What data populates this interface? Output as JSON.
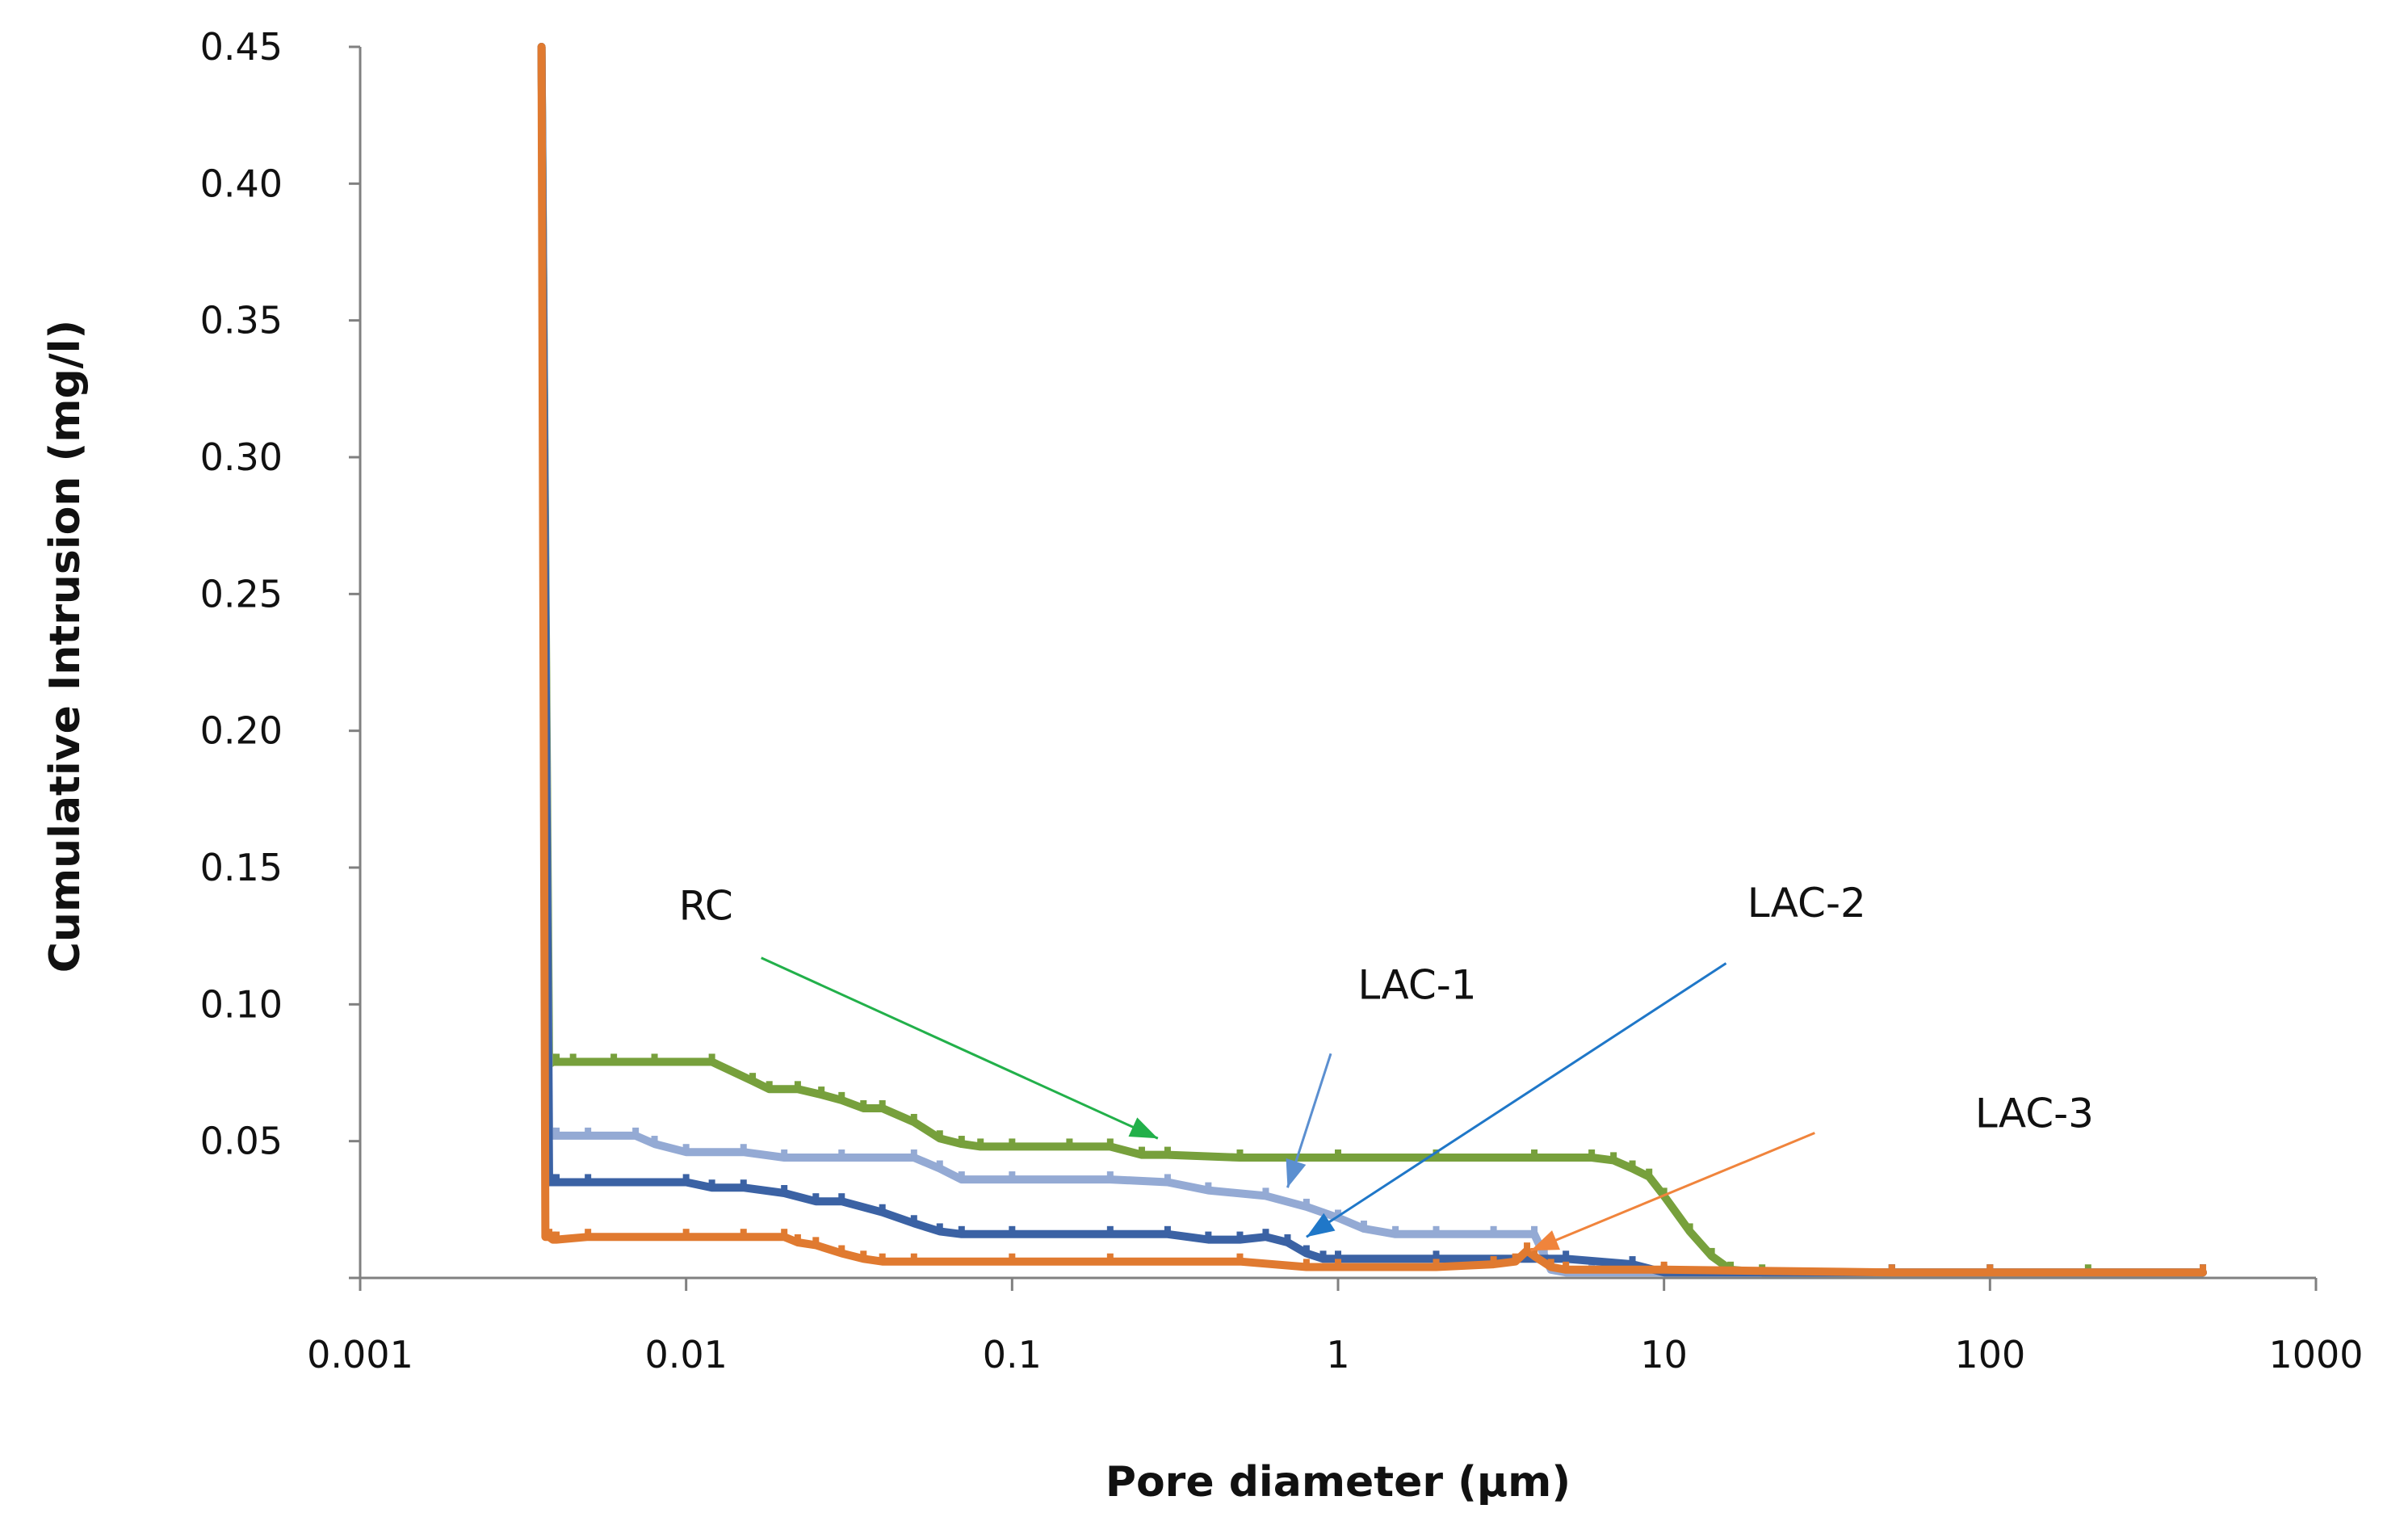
{
  "chart_data": {
    "type": "line",
    "title": "",
    "xlabel": "Pore diameter (µm)",
    "ylabel": "Cumulative Intrusion (mg/l)",
    "x_scale": "log",
    "xlim": [
      0.001,
      1000
    ],
    "ylim": [
      0,
      0.45
    ],
    "x_ticks": [
      0.001,
      0.01,
      0.1,
      1,
      10,
      100,
      1000
    ],
    "x_tick_labels": [
      "0.001",
      "0.01",
      "0.1",
      "1",
      "10",
      "100",
      "1000"
    ],
    "y_ticks": [
      0.05,
      0.1,
      0.15,
      0.2,
      0.25,
      0.3,
      0.35,
      0.4,
      0.45
    ],
    "y_tick_labels": [
      "0.05",
      "0.10",
      "0.15",
      "0.20",
      "0.25",
      "0.30",
      "0.35",
      "0.40",
      "0.45"
    ],
    "grid": false,
    "legend": "none",
    "series": [
      {
        "name": "RC",
        "color": "#77a03c",
        "x": [
          0.0036,
          0.0038,
          0.0039,
          0.004,
          0.0045,
          0.006,
          0.008,
          0.012,
          0.016,
          0.018,
          0.022,
          0.026,
          0.03,
          0.035,
          0.04,
          0.05,
          0.06,
          0.07,
          0.08,
          0.1,
          0.15,
          0.2,
          0.25,
          0.3,
          0.5,
          1,
          2,
          4,
          6,
          7,
          8,
          9,
          10,
          12,
          14,
          16,
          20,
          50,
          100,
          200,
          450
        ],
        "y": [
          0.45,
          0.078,
          0.079,
          0.079,
          0.079,
          0.079,
          0.079,
          0.079,
          0.072,
          0.069,
          0.069,
          0.067,
          0.065,
          0.062,
          0.062,
          0.057,
          0.051,
          0.049,
          0.048,
          0.048,
          0.048,
          0.048,
          0.045,
          0.045,
          0.044,
          0.044,
          0.044,
          0.044,
          0.044,
          0.043,
          0.04,
          0.037,
          0.03,
          0.017,
          0.008,
          0.003,
          0.002,
          0.002,
          0.002,
          0.002,
          0.002
        ]
      },
      {
        "name": "LAC-1",
        "color": "#94aad4",
        "x": [
          0.0036,
          0.0038,
          0.0039,
          0.004,
          0.005,
          0.007,
          0.008,
          0.01,
          0.015,
          0.02,
          0.03,
          0.05,
          0.06,
          0.07,
          0.1,
          0.2,
          0.3,
          0.4,
          0.6,
          0.8,
          1,
          1.2,
          1.5,
          2,
          3,
          4,
          4.3,
          4.5,
          5,
          6,
          10,
          50,
          100,
          450
        ],
        "y": [
          0.45,
          0.052,
          0.052,
          0.052,
          0.052,
          0.052,
          0.049,
          0.046,
          0.046,
          0.044,
          0.044,
          0.044,
          0.04,
          0.036,
          0.036,
          0.036,
          0.035,
          0.032,
          0.03,
          0.026,
          0.022,
          0.018,
          0.016,
          0.016,
          0.016,
          0.016,
          0.008,
          0.003,
          0.002,
          0.002,
          0.002,
          0.002,
          0.002,
          0.002
        ]
      },
      {
        "name": "LAC-2",
        "color": "#3b62a4",
        "x": [
          0.0036,
          0.0038,
          0.0039,
          0.004,
          0.005,
          0.01,
          0.012,
          0.015,
          0.02,
          0.025,
          0.03,
          0.04,
          0.05,
          0.06,
          0.07,
          0.1,
          0.2,
          0.3,
          0.4,
          0.5,
          0.6,
          0.7,
          0.8,
          0.9,
          1,
          2,
          5,
          8,
          10,
          50,
          100,
          450
        ],
        "y": [
          0.45,
          0.035,
          0.035,
          0.035,
          0.035,
          0.035,
          0.033,
          0.033,
          0.031,
          0.028,
          0.028,
          0.024,
          0.02,
          0.017,
          0.016,
          0.016,
          0.016,
          0.016,
          0.014,
          0.014,
          0.015,
          0.013,
          0.009,
          0.007,
          0.007,
          0.007,
          0.007,
          0.005,
          0.002,
          0.002,
          0.002,
          0.002
        ]
      },
      {
        "name": "LAC-3",
        "color": "#e07a30",
        "x": [
          0.0036,
          0.0037,
          0.0038,
          0.0039,
          0.004,
          0.005,
          0.01,
          0.015,
          0.02,
          0.022,
          0.025,
          0.03,
          0.035,
          0.04,
          0.05,
          0.1,
          0.2,
          0.5,
          0.8,
          1,
          2,
          3,
          3.5,
          3.8,
          4,
          4.5,
          5,
          10,
          50,
          100,
          450
        ],
        "y": [
          0.45,
          0.015,
          0.015,
          0.014,
          0.014,
          0.015,
          0.015,
          0.015,
          0.015,
          0.013,
          0.012,
          0.009,
          0.007,
          0.006,
          0.006,
          0.006,
          0.006,
          0.006,
          0.004,
          0.004,
          0.004,
          0.005,
          0.006,
          0.01,
          0.008,
          0.004,
          0.003,
          0.003,
          0.002,
          0.002,
          0.002
        ]
      }
    ],
    "annotations": [
      {
        "label": "RC",
        "color": "#22b04a",
        "text_x": 0.0095,
        "text_y": 0.131,
        "arrow_from": [
          0.017,
          0.117
        ],
        "arrow_to": [
          0.28,
          0.051
        ]
      },
      {
        "label": "LAC-1",
        "color": "#5b8fd0",
        "text_x": 1.15,
        "text_y": 0.102,
        "arrow_from": [
          0.95,
          0.082
        ],
        "arrow_to": [
          0.7,
          0.033
        ]
      },
      {
        "label": "LAC-2",
        "color": "#1f77c8",
        "text_x": 18,
        "text_y": 0.132,
        "arrow_from": [
          15.5,
          0.115
        ],
        "arrow_to": [
          0.8,
          0.015
        ]
      },
      {
        "label": "LAC-3",
        "color": "#f0843c",
        "text_x": 90,
        "text_y": 0.055,
        "arrow_from": [
          29,
          0.053
        ],
        "arrow_to": [
          3.9,
          0.01
        ]
      }
    ]
  }
}
